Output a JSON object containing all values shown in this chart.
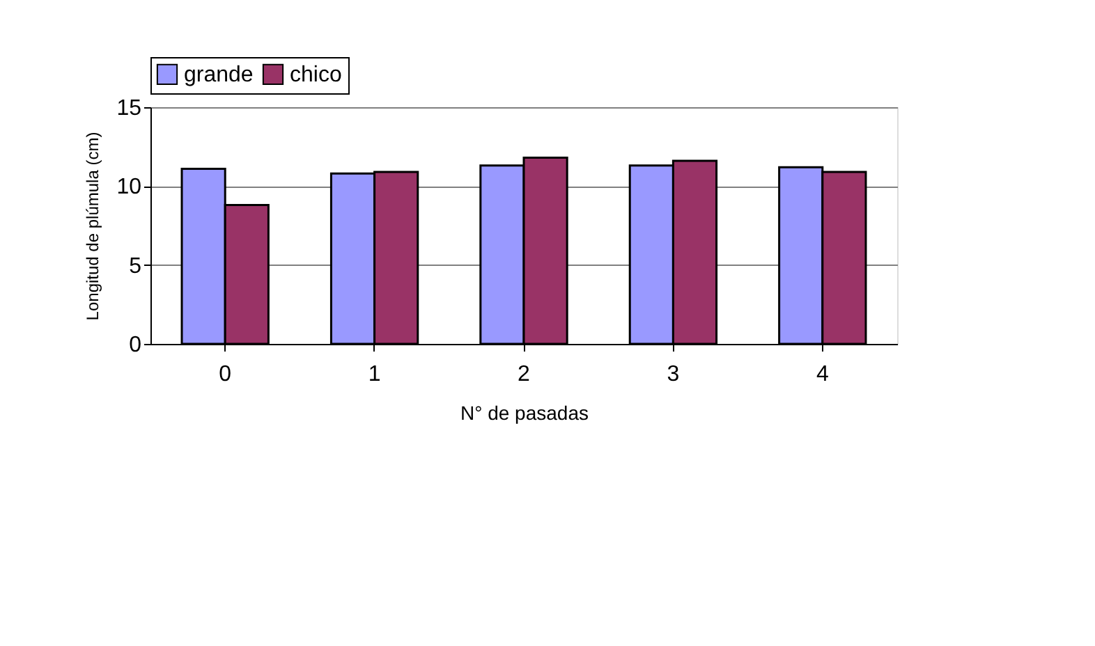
{
  "chart_data": {
    "type": "bar",
    "xlabel": "N° de pasadas",
    "ylabel": "Longitud de plúmula (cm)",
    "categories": [
      "0",
      "1",
      "2",
      "3",
      "4"
    ],
    "series": [
      {
        "name": "grande",
        "color": "#9999ff",
        "values": [
          11.1,
          10.8,
          11.3,
          11.3,
          11.2
        ]
      },
      {
        "name": "chico",
        "color": "#993366",
        "values": [
          8.8,
          10.9,
          11.8,
          11.6,
          10.9
        ]
      }
    ],
    "ylim": [
      0,
      15
    ],
    "yticks": [
      0,
      5,
      10,
      15
    ],
    "grid": "y",
    "legend": "top"
  }
}
